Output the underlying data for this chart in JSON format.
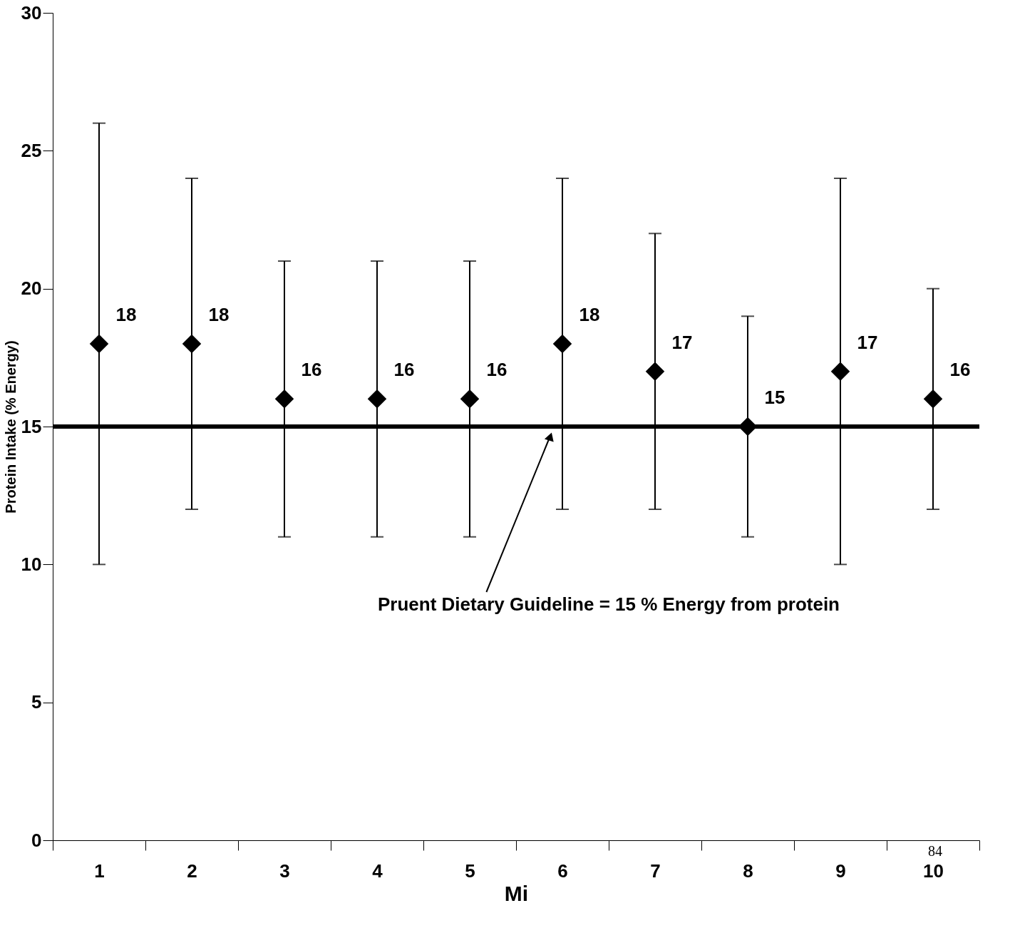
{
  "chart_data": {
    "type": "scatter",
    "xlabel": "Mi",
    "ylabel": "Protein Intake (% Energy)",
    "categories": [
      "1",
      "2",
      "3",
      "4",
      "5",
      "6",
      "7",
      "8",
      "9",
      "10"
    ],
    "series": [
      {
        "color": "#000000",
        "values": [
          18,
          18,
          16,
          16,
          16,
          18,
          17,
          15,
          17,
          16
        ],
        "errors": [
          [
            10,
            26
          ],
          [
            12,
            24
          ],
          [
            11,
            21
          ],
          [
            11,
            21
          ],
          [
            11,
            21
          ],
          [
            12,
            24
          ],
          [
            12,
            22
          ],
          [
            11,
            19
          ],
          [
            10,
            24
          ],
          [
            12,
            20
          ]
        ]
      }
    ],
    "marker": "diamond",
    "data_labels": true,
    "grid": false,
    "ylim": [
      0,
      30
    ],
    "yticks": [
      0,
      5,
      10,
      15,
      20,
      25,
      30
    ],
    "ref_lines": [
      {
        "axis": "y",
        "value": 15,
        "label": "Pruent Dietary Guideline  = 15 % Energy from protein",
        "color": "#000000"
      }
    ],
    "annotations": [
      "84"
    ]
  }
}
